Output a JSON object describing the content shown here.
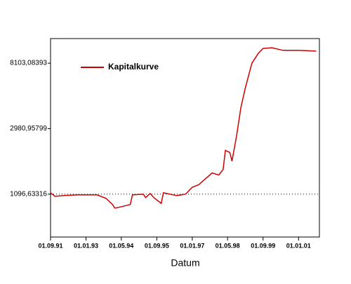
{
  "chart_data": {
    "type": "line",
    "log_scale": true,
    "x_label": "Datum",
    "x": [
      "1991-09-01",
      "1991-11-01",
      "1992-03-01",
      "1992-09-01",
      "1993-06-01",
      "1993-10-01",
      "1994-01-01",
      "1994-02-01",
      "1994-05-01",
      "1994-09-01",
      "1994-10-01",
      "1995-03-01",
      "1995-04-01",
      "1995-06-01",
      "1995-08-01",
      "1995-11-01",
      "1995-12-01",
      "1996-06-01",
      "1996-10-01",
      "1997-01-01",
      "1997-04-01",
      "1997-07-01",
      "1997-10-01",
      "1998-01-01",
      "1998-03-01",
      "1998-04-01",
      "1998-06-01",
      "1998-07-01",
      "1998-09-01",
      "1998-11-01",
      "1999-01-01",
      "1999-04-01",
      "1999-07-01",
      "1999-09-01",
      "2000-01-01",
      "2000-06-01",
      "2001-01-01",
      "2001-09-01"
    ],
    "series": [
      {
        "name": "Kapitalkurve",
        "color": "#cc0000",
        "values": [
          1120,
          1061,
          1073,
          1085,
          1085,
          1030,
          936,
          886,
          905,
          936,
          1085,
          1097,
          1040,
          1108,
          1030,
          953,
          1120,
          1073,
          1097,
          1219,
          1268,
          1387,
          1516,
          1469,
          1601,
          2138,
          2074,
          1816,
          2654,
          4133,
          5571,
          8103,
          9463,
          10146,
          10255,
          9856,
          9856,
          9750
        ]
      }
    ],
    "xlim": [
      "1991-09-01",
      "2001-10-15"
    ],
    "xticks": [
      {
        "value": "1991-09-01",
        "label": "01.09.91"
      },
      {
        "value": "1993-01-01",
        "label": "01.01.93"
      },
      {
        "value": "1994-05-01",
        "label": "01.05.94"
      },
      {
        "value": "1995-09-01",
        "label": "01.09.95"
      },
      {
        "value": "1997-01-01",
        "label": "01.01.97"
      },
      {
        "value": "1998-05-01",
        "label": "01.05.98"
      },
      {
        "value": "1999-09-01",
        "label": "01.09.99"
      },
      {
        "value": "2001-01-01",
        "label": "01.01.01"
      }
    ],
    "ylim": [
      570,
      11800
    ],
    "yticks": [
      {
        "value": 1096.63316,
        "label": "1096,63316"
      },
      {
        "value": 2980.95799,
        "label": "2980,95799"
      },
      {
        "value": 8103.08393,
        "label": "8103,08393"
      }
    ],
    "reference_line": 1096.63316,
    "legend": "upper-left"
  }
}
